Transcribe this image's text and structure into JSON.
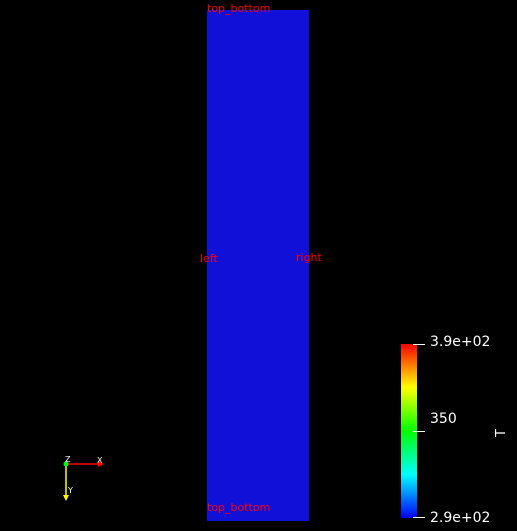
{
  "viewport": {
    "background_color": "#000000"
  },
  "mesh": {
    "fill_color": "#1010d8",
    "boundary_labels": {
      "top": "top_bottom",
      "bottom": "top_bottom",
      "left": "left",
      "right": "right"
    },
    "label_color": "#ff0000"
  },
  "color_legend": {
    "title": "T",
    "max_label": "3.9e+02",
    "mid_label": "350",
    "min_label": "2.9e+02",
    "colormap": "rainbow",
    "gradient_colors": [
      "#ff0000",
      "#ffff00",
      "#00ff00",
      "#00ffff",
      "#0000ff"
    ]
  },
  "orientation_axes": {
    "x_label": "X",
    "y_label": "Y",
    "z_label": "Z",
    "x_color": "#ff0000",
    "y_color": "#ffff00",
    "z_color": "#00ff00"
  }
}
